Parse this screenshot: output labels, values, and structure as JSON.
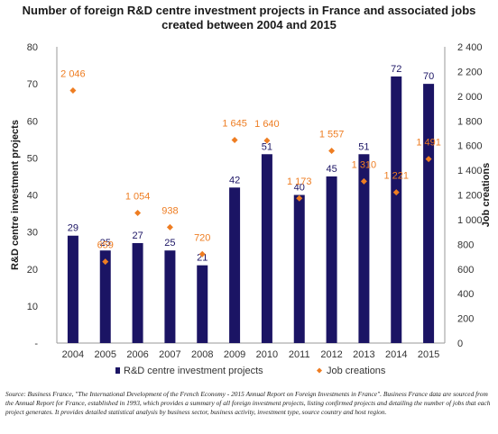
{
  "chart_data": {
    "type": "bar",
    "title": "Number of foreign R&D centre investment projects in France and associated jobs created between 2004 and 2015",
    "categories": [
      "2004",
      "2005",
      "2006",
      "2007",
      "2008",
      "2009",
      "2010",
      "2011",
      "2012",
      "2013",
      "2014",
      "2015"
    ],
    "series": [
      {
        "name": "R&D centre investment projects",
        "type": "bar",
        "axis": "left",
        "color": "#1b1464",
        "values": [
          29,
          25,
          27,
          25,
          21,
          42,
          51,
          40,
          45,
          51,
          72,
          70
        ],
        "labels": [
          "29",
          "25",
          "27",
          "25",
          "21",
          "42",
          "51",
          "40",
          "45",
          "51",
          "72",
          "70"
        ]
      },
      {
        "name": "Job creations",
        "type": "scatter",
        "marker": "diamond",
        "axis": "right",
        "color": "#ee7d22",
        "values": [
          2046,
          659,
          1054,
          938,
          720,
          1645,
          1640,
          1173,
          1557,
          1310,
          1221,
          1491
        ],
        "labels": [
          "2 046",
          "659",
          "1 054",
          "938",
          "720",
          "1 645",
          "1 640",
          "1 173",
          "1 557",
          "1 310",
          "1 221",
          "1 491"
        ]
      }
    ],
    "ylabel": "R&D centre investment projects",
    "y2label": "Job creations",
    "ylim": [
      0,
      80
    ],
    "y2lim": [
      0,
      2400
    ],
    "yticks": [
      "-",
      "10",
      "20",
      "30",
      "40",
      "50",
      "60",
      "70",
      "80"
    ],
    "y2ticks": [
      "0",
      "200",
      "400",
      "600",
      "800",
      "1 000",
      "1 200",
      "1 400",
      "1 600",
      "1 800",
      "2 000",
      "2 200",
      "2 400"
    ],
    "grid": false,
    "legend_position": "bottom"
  },
  "source_text": "Source: Business France, \"The International Development of the French Economy - 2015 Annual Report on Foreign Investments in France\". Business France data are sourced from the Annual Report for France, established in 1993, which provides a summary of all foreign investment projects, listing confirmed projects and detailing the number of jobs that each project generates. It provides detailed statistical analysis by business sector, business activity, investment type, source country and host region."
}
